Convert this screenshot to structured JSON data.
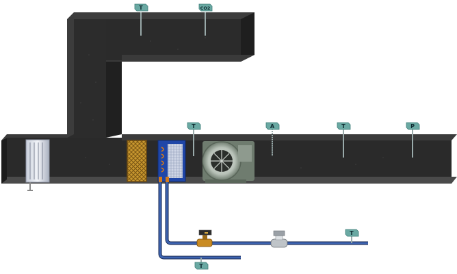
{
  "sensors": {
    "supply_top_temp": {
      "label": "T",
      "type": "temperature"
    },
    "supply_top_co2": {
      "label": "CO2",
      "type": "co2"
    },
    "mixing_temp": {
      "label": "T",
      "type": "temperature"
    },
    "airflow": {
      "label": "A",
      "type": "airflow"
    },
    "discharge_temp": {
      "label": "T",
      "type": "temperature"
    },
    "static_pressure": {
      "label": "P",
      "type": "pressure"
    },
    "water_supply_temp": {
      "label": "T",
      "type": "temperature"
    },
    "water_return_temp": {
      "label": "T",
      "type": "temperature"
    }
  },
  "colors": {
    "duct": "#2b2b2b",
    "duct_dark": "#1a1a1a",
    "duct_edge": "#444444",
    "sensor_head": "#6aa9a3",
    "pipe": "#2a4a8a",
    "filter": "#c8972f",
    "coil": "#1f46a8",
    "fan_housing": "#7e8b7e",
    "valve_body": "#c98b22"
  },
  "icons": {
    "damper": "louver-damper-icon",
    "filter": "filter-icon",
    "coil": "heating-coil-icon",
    "fan": "centrifugal-fan-icon",
    "valve": "control-valve-icon",
    "flow_meter": "flow-meter-icon"
  }
}
